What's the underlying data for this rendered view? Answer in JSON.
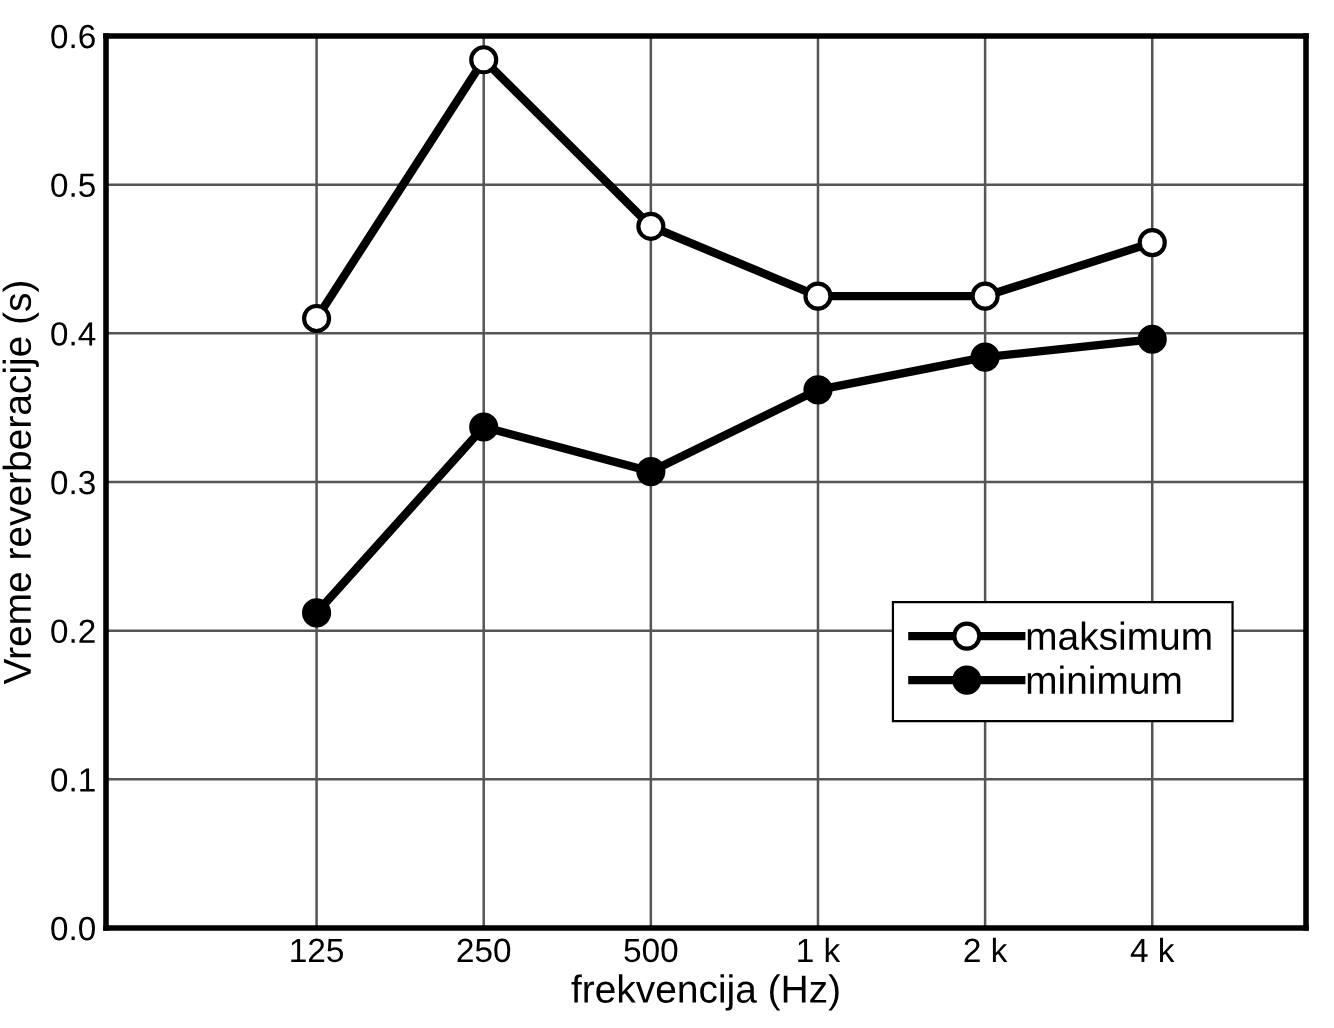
{
  "chart_data": {
    "type": "line",
    "xlabel": "frekvencija (Hz)",
    "ylabel": "Vreme reverberacije (s)",
    "categories": [
      "125",
      "250",
      "500",
      "1 k",
      "2 k",
      "4 k"
    ],
    "series": [
      {
        "name": "maksimum",
        "color": "#000000",
        "marker": "circle",
        "values": [
          0.41,
          0.584,
          0.472,
          0.425,
          0.425,
          0.461
        ]
      },
      {
        "name": "minimum",
        "color": "#000000",
        "marker": "circle",
        "values": [
          0.212,
          0.337,
          0.307,
          0.362,
          0.384,
          0.396
        ]
      }
    ],
    "ylim": [
      0,
      0.6
    ],
    "yticks": [
      {
        "value": 0,
        "label": "0.0"
      },
      0.1,
      0.2,
      0.3,
      0.4,
      0.5,
      0.6
    ],
    "grid": true,
    "legend": "bottom right",
    "line_style": "solid"
  }
}
